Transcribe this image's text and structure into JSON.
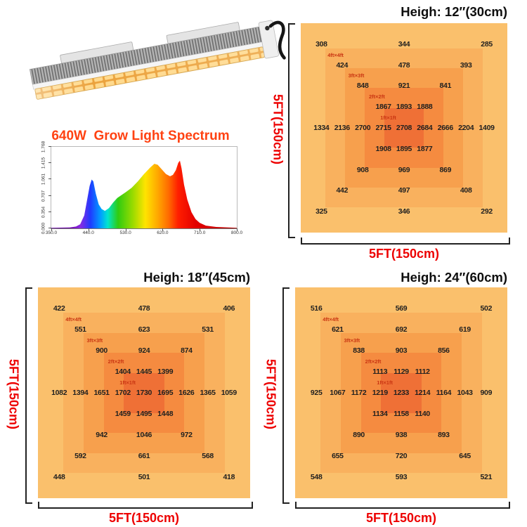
{
  "chart_data": [
    {
      "type": "area",
      "title": "640W  Grow Light Spectrum",
      "x_ticks": [
        "350.0",
        "440.0",
        "530.0",
        "620.0",
        "710.0",
        "800.0"
      ],
      "y_ticks": [
        "0.000",
        "0.354",
        "0.707",
        "1.061",
        "1.415",
        "1.768"
      ],
      "xlim": [
        350,
        800
      ],
      "ylim": [
        0,
        1.768
      ],
      "xlabel": "wavelength (nm)",
      "ylabel": "relative intensity",
      "points": [
        [
          350,
          0.01
        ],
        [
          395,
          0.02
        ],
        [
          410,
          0.04
        ],
        [
          420,
          0.09
        ],
        [
          430,
          0.28
        ],
        [
          437,
          0.62
        ],
        [
          443,
          0.92
        ],
        [
          448,
          1.06
        ],
        [
          452,
          1.02
        ],
        [
          458,
          0.75
        ],
        [
          465,
          0.52
        ],
        [
          472,
          0.42
        ],
        [
          480,
          0.38
        ],
        [
          490,
          0.44
        ],
        [
          500,
          0.56
        ],
        [
          510,
          0.66
        ],
        [
          520,
          0.72
        ],
        [
          530,
          0.78
        ],
        [
          545,
          0.88
        ],
        [
          560,
          1.02
        ],
        [
          575,
          1.18
        ],
        [
          590,
          1.32
        ],
        [
          600,
          1.4
        ],
        [
          608,
          1.38
        ],
        [
          618,
          1.28
        ],
        [
          628,
          1.18
        ],
        [
          638,
          1.13
        ],
        [
          645,
          1.16
        ],
        [
          652,
          1.26
        ],
        [
          658,
          1.42
        ],
        [
          662,
          1.47
        ],
        [
          666,
          1.3
        ],
        [
          672,
          0.95
        ],
        [
          680,
          0.62
        ],
        [
          690,
          0.35
        ],
        [
          700,
          0.2
        ],
        [
          710,
          0.12
        ],
        [
          725,
          0.06
        ],
        [
          750,
          0.03
        ],
        [
          800,
          0.01
        ]
      ]
    },
    {
      "type": "heatmap",
      "title": "Heigh: 12″(30cm)",
      "xlabel": "5FT(150cm)",
      "ylabel": "5FT(150cm)",
      "zone_labels": [
        "4ft×4ft",
        "3ft×3ft",
        "2ft×2ft",
        "1ft×1ft"
      ],
      "ring_colors": [
        "#FAC06C",
        "#F9B15E",
        "#F7A04D",
        "#F58B40",
        "#EF7036"
      ],
      "rows": [
        {
          "cols": [
            1,
            5,
            9
          ],
          "values": [
            308,
            344,
            285
          ]
        },
        {
          "cols": [
            2,
            5,
            8
          ],
          "values": [
            424,
            478,
            393
          ]
        },
        {
          "cols": [
            3,
            5,
            7
          ],
          "values": [
            848,
            921,
            841
          ]
        },
        {
          "cols": [
            4,
            5,
            6
          ],
          "values": [
            1867,
            1893,
            1888
          ]
        },
        {
          "cols": [
            1,
            2,
            3,
            4,
            5,
            6,
            7,
            8,
            9
          ],
          "values": [
            1334,
            2136,
            2700,
            2715,
            2708,
            2684,
            2666,
            2204,
            1409
          ]
        },
        {
          "cols": [
            4,
            5,
            6
          ],
          "values": [
            1908,
            1895,
            1877
          ]
        },
        {
          "cols": [
            3,
            5,
            7
          ],
          "values": [
            908,
            969,
            869
          ]
        },
        {
          "cols": [
            2,
            5,
            8
          ],
          "values": [
            442,
            497,
            408
          ]
        },
        {
          "cols": [
            1,
            5,
            9
          ],
          "values": [
            325,
            346,
            292
          ]
        }
      ]
    },
    {
      "type": "heatmap",
      "title": "Heigh: 18″(45cm)",
      "xlabel": "5FT(150cm)",
      "ylabel": "5FT(150cm)",
      "zone_labels": [
        "4ft×4ft",
        "3ft×3ft",
        "2ft×2ft",
        "1ft×1ft"
      ],
      "ring_colors": [
        "#FAC06C",
        "#F9B15E",
        "#F7A04D",
        "#F58B40",
        "#EF7036"
      ],
      "rows": [
        {
          "cols": [
            1,
            5,
            9
          ],
          "values": [
            422,
            478,
            406
          ]
        },
        {
          "cols": [
            2,
            5,
            8
          ],
          "values": [
            551,
            623,
            531
          ]
        },
        {
          "cols": [
            3,
            5,
            7
          ],
          "values": [
            900,
            924,
            874
          ]
        },
        {
          "cols": [
            4,
            5,
            6
          ],
          "values": [
            1404,
            1445,
            1399
          ]
        },
        {
          "cols": [
            1,
            2,
            3,
            4,
            5,
            6,
            7,
            8,
            9
          ],
          "values": [
            1082,
            1394,
            1651,
            1702,
            1730,
            1695,
            1626,
            1365,
            1059
          ]
        },
        {
          "cols": [
            4,
            5,
            6
          ],
          "values": [
            1459,
            1495,
            1448
          ]
        },
        {
          "cols": [
            3,
            5,
            7
          ],
          "values": [
            942,
            1046,
            972
          ]
        },
        {
          "cols": [
            2,
            5,
            8
          ],
          "values": [
            592,
            661,
            568
          ]
        },
        {
          "cols": [
            1,
            5,
            9
          ],
          "values": [
            448,
            501,
            418
          ]
        }
      ]
    },
    {
      "type": "heatmap",
      "title": "Heigh: 24″(60cm)",
      "xlabel": "5FT(150cm)",
      "ylabel": "5FT(150cm)",
      "zone_labels": [
        "4ft×4ft",
        "3ft×3ft",
        "2ft×2ft",
        "1ft×1ft"
      ],
      "ring_colors": [
        "#FAC06C",
        "#F9B15E",
        "#F7A04D",
        "#F58B40",
        "#EF7036"
      ],
      "rows": [
        {
          "cols": [
            1,
            5,
            9
          ],
          "values": [
            516,
            569,
            502
          ]
        },
        {
          "cols": [
            2,
            5,
            8
          ],
          "values": [
            621,
            692,
            619
          ]
        },
        {
          "cols": [
            3,
            5,
            7
          ],
          "values": [
            838,
            903,
            856
          ]
        },
        {
          "cols": [
            4,
            5,
            6
          ],
          "values": [
            1113,
            1129,
            1112
          ]
        },
        {
          "cols": [
            1,
            2,
            3,
            4,
            5,
            6,
            7,
            8,
            9
          ],
          "values": [
            925,
            1067,
            1172,
            1219,
            1233,
            1214,
            1164,
            1043,
            909
          ]
        },
        {
          "cols": [
            4,
            5,
            6
          ],
          "values": [
            1134,
            1158,
            1140
          ]
        },
        {
          "cols": [
            3,
            5,
            7
          ],
          "values": [
            890,
            938,
            893
          ]
        },
        {
          "cols": [
            2,
            5,
            8
          ],
          "values": [
            655,
            720,
            645
          ]
        },
        {
          "cols": [
            1,
            5,
            9
          ],
          "values": [
            548,
            593,
            521
          ]
        }
      ]
    }
  ]
}
